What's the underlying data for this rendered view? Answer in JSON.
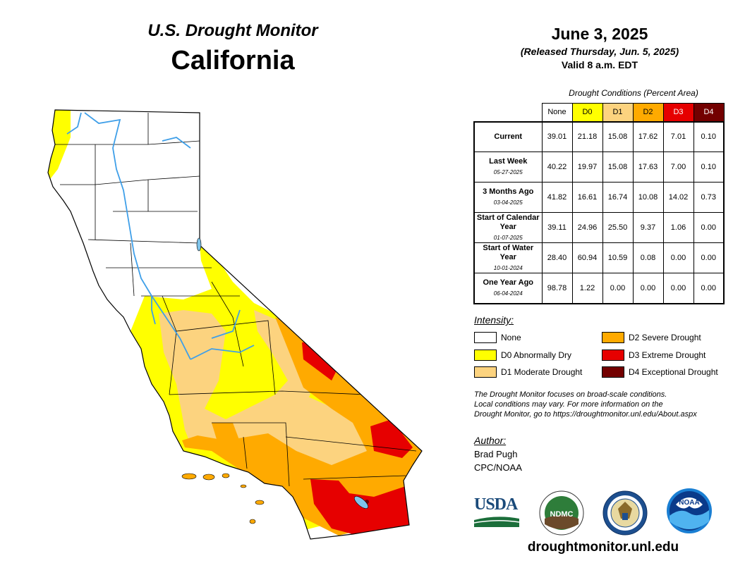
{
  "header": {
    "subtitle": "U.S. Drought Monitor",
    "state": "California",
    "date": "June 3, 2025",
    "released": "(Released Thursday, Jun. 5, 2025)",
    "valid": "Valid 8 a.m. EDT"
  },
  "table": {
    "title": "Drought Conditions (Percent Area)",
    "columns": [
      "None",
      "D0",
      "D1",
      "D2",
      "D3",
      "D4"
    ],
    "rows": [
      {
        "label": "Current",
        "date": "",
        "values": [
          "39.01",
          "21.18",
          "15.08",
          "17.62",
          "7.01",
          "0.10"
        ]
      },
      {
        "label": "Last Week",
        "date": "05-27-2025",
        "values": [
          "40.22",
          "19.97",
          "15.08",
          "17.63",
          "7.00",
          "0.10"
        ]
      },
      {
        "label": "3 Months Ago",
        "date": "03-04-2025",
        "values": [
          "41.82",
          "16.61",
          "16.74",
          "10.08",
          "14.02",
          "0.73"
        ]
      },
      {
        "label": "Start of Calendar Year",
        "date": "01-07-2025",
        "values": [
          "39.11",
          "24.96",
          "25.50",
          "9.37",
          "1.06",
          "0.00"
        ]
      },
      {
        "label": "Start of Water Year",
        "date": "10-01-2024",
        "values": [
          "28.40",
          "60.94",
          "10.59",
          "0.08",
          "0.00",
          "0.00"
        ]
      },
      {
        "label": "One Year Ago",
        "date": "06-04-2024",
        "values": [
          "98.78",
          "1.22",
          "0.00",
          "0.00",
          "0.00",
          "0.00"
        ]
      }
    ]
  },
  "legend": {
    "title": "Intensity:",
    "items": [
      {
        "label": "None",
        "color": "#ffffff"
      },
      {
        "label": "D0 Abnormally Dry",
        "color": "#ffff00"
      },
      {
        "label": "D1 Moderate Drought",
        "color": "#fcd37f"
      },
      {
        "label": "D2 Severe Drought",
        "color": "#ffaa00"
      },
      {
        "label": "D3 Extreme Drought",
        "color": "#e60000"
      },
      {
        "label": "D4 Exceptional Drought",
        "color": "#730000"
      }
    ]
  },
  "note": {
    "line1": "The Drought Monitor focuses on broad-scale conditions.",
    "line2": "Local conditions may vary. For more information on the",
    "line3": "Drought Monitor, go to https://droughtmonitor.unl.edu/About.aspx"
  },
  "author": {
    "title": "Author:",
    "name": "Brad Pugh",
    "org": "CPC/NOAA"
  },
  "logos": {
    "usda": "USDA",
    "ndmc": "NDMC",
    "noaa": "NOAA"
  },
  "footer": {
    "website": "droughtmonitor.unl.edu"
  },
  "colors": {
    "none": "#ffffff",
    "d0": "#ffff00",
    "d1": "#fcd37f",
    "d2": "#ffaa00",
    "d3": "#e60000",
    "d4": "#730000",
    "water": "#7fc4ea",
    "river": "#3f9fe8"
  }
}
